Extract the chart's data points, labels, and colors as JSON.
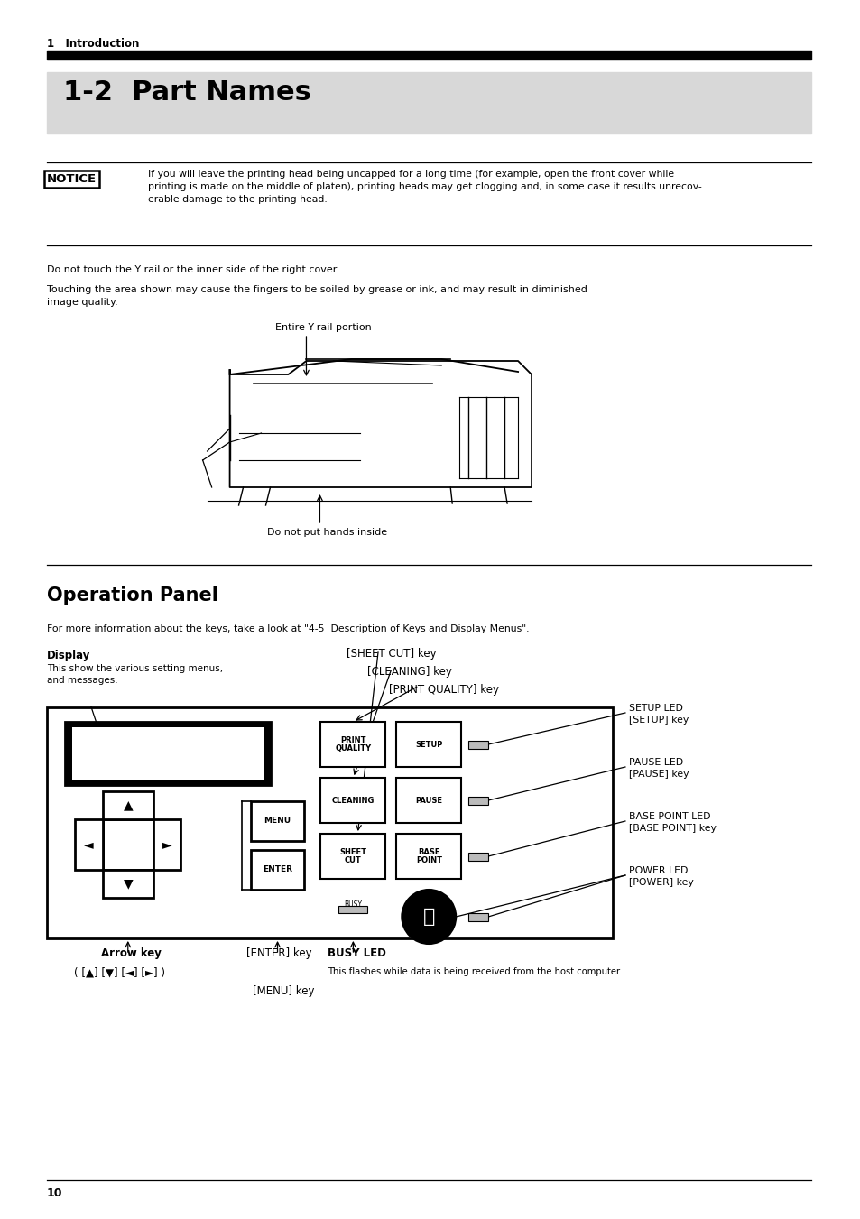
{
  "bg_color": "#ffffff",
  "page_width": 9.54,
  "page_height": 13.51,
  "top_label": "1   Introduction",
  "section_title": "1-2  Part Names",
  "section_bg": "#d8d8d8",
  "notice_label": "NOTICE",
  "notice_text": "If you will leave the printing head being uncapped for a long time (for example, open the front cover while\nprinting is made on the middle of platen), printing heads may get clogging and, in some case it results unrecov-\nerable damage to the printing head.",
  "body_text1": "Do not touch the Y rail or the inner side of the right cover.",
  "body_text2": "Touching the area shown may cause the fingers to be soiled by grease or ink, and may result in diminished\nimage quality.",
  "y_rail_label": "Entire Y-rail portion",
  "do_not_label": "Do not put hands inside",
  "op_section_title": "Operation Panel",
  "op_info_text": "For more information about the keys, take a look at \"4-5  Description of Keys and Display Menus\".",
  "display_label": "Display",
  "display_sub": "This show the various setting menus,\nand messages.",
  "sheet_cut_label": "[SHEET CUT] key",
  "cleaning_label": "[CLEANING] key",
  "print_quality_label": "[PRINT QUALITY] key",
  "setup_led_label": "SETUP LED\n[SETUP] key",
  "pause_led_label": "PAUSE LED\n[PAUSE] key",
  "base_point_led_label": "BASE POINT LED\n[BASE POINT] key",
  "power_led_label": "POWER LED\n[POWER] key",
  "arrow_key_label": "Arrow key",
  "arrow_key_sub": "( [▲] [▼] [◄] [►] )",
  "enter_key_label": "[ENTER] key",
  "menu_key_label": "[MENU] key",
  "busy_led_label": "BUSY LED",
  "busy_led_sub": "This flashes while data is being received from the host computer.",
  "page_number": "10"
}
